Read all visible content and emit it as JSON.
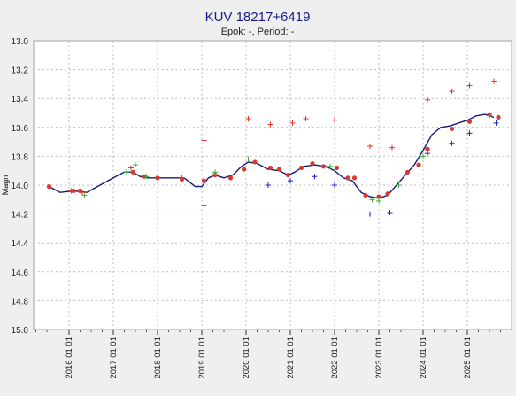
{
  "colors": {
    "background": "#efefef",
    "plot_background": "#ffffff",
    "frame": "#a0a0a0",
    "grid": "#bdbdbd",
    "title": "#1a1a8c",
    "fit_line": "#1a1a7a",
    "marker_red": "#e0302a",
    "marker_green": "#3caa3c",
    "marker_blue": "#2020c0",
    "mean_point": "#d83a2e"
  },
  "chart_data": {
    "type": "scatter",
    "title": "KUV 18217+6419",
    "subtitle": "Epok: -, Period: -",
    "xlabel": "",
    "ylabel": "Magn",
    "x_unit": "year",
    "xlim": [
      2015.2,
      2026.0
    ],
    "ylim": [
      13.0,
      15.0
    ],
    "y_inverted": true,
    "grid": true,
    "legend": "none",
    "x_major_ticks": [
      2016,
      2017,
      2018,
      2019,
      2020,
      2021,
      2022,
      2023,
      2024,
      2025
    ],
    "x_tick_labels": [
      "2016 01 01",
      "2017 01 01",
      "2018 01 01",
      "2019 01 01",
      "2020 01 01",
      "2021 01 01",
      "2022 01 01",
      "2023 01 01",
      "2024 01 01",
      "2025 01 01"
    ],
    "x_minor_step": 0.25,
    "y_ticks": [
      13.0,
      13.2,
      13.4,
      13.6,
      13.8,
      14.0,
      14.2,
      14.4,
      14.6,
      14.8,
      15.0
    ],
    "y_tick_labels": [
      "13.0",
      "13.2",
      "13.4",
      "13.6",
      "13.8",
      "14.0",
      "14.2",
      "14.4",
      "14.6",
      "14.8",
      "15.0"
    ],
    "series": [
      {
        "style": "line",
        "color": "fit_line",
        "x": [
          2015.55,
          2015.8,
          2016.1,
          2016.4,
          2016.7,
          2017.0,
          2017.25,
          2017.45,
          2017.6,
          2017.8,
          2018.0,
          2018.3,
          2018.6,
          2018.85,
          2019.0,
          2019.15,
          2019.3,
          2019.5,
          2019.7,
          2019.9,
          2020.05,
          2020.25,
          2020.5,
          2020.75,
          2020.95,
          2021.1,
          2021.3,
          2021.55,
          2021.8,
          2022.0,
          2022.2,
          2022.4,
          2022.6,
          2022.8,
          2023.0,
          2023.2,
          2023.4,
          2023.6,
          2023.8,
          2024.0,
          2024.2,
          2024.4,
          2024.6,
          2024.8,
          2025.0,
          2025.2,
          2025.4,
          2025.6
        ],
        "y": [
          14.01,
          14.05,
          14.04,
          14.05,
          14.0,
          13.95,
          13.91,
          13.91,
          13.94,
          13.95,
          13.95,
          13.95,
          13.95,
          14.01,
          14.01,
          13.95,
          13.93,
          13.95,
          13.93,
          13.87,
          13.84,
          13.85,
          13.89,
          13.9,
          13.93,
          13.91,
          13.87,
          13.86,
          13.87,
          13.9,
          13.95,
          13.97,
          14.05,
          14.08,
          14.09,
          14.07,
          14.0,
          13.93,
          13.86,
          13.76,
          13.65,
          13.6,
          13.59,
          13.57,
          13.55,
          13.52,
          13.51,
          13.53
        ]
      },
      {
        "style": "dot",
        "color": "mean_point",
        "x": [
          2015.55,
          2016.1,
          2016.25,
          2017.45,
          2017.7,
          2018.0,
          2018.55,
          2019.05,
          2019.3,
          2019.65,
          2019.95,
          2020.2,
          2020.55,
          2020.75,
          2020.95,
          2021.25,
          2021.5,
          2021.75,
          2022.05,
          2022.3,
          2022.45,
          2022.7,
          2023.0,
          2023.2,
          2023.65,
          2023.9,
          2024.1,
          2024.65,
          2025.05,
          2025.5,
          2025.7
        ],
        "y": [
          14.01,
          14.04,
          14.04,
          13.91,
          13.94,
          13.95,
          13.96,
          13.97,
          13.93,
          13.95,
          13.89,
          13.84,
          13.88,
          13.89,
          13.93,
          13.88,
          13.85,
          13.87,
          13.88,
          13.95,
          13.95,
          14.07,
          14.08,
          14.06,
          13.91,
          13.86,
          13.75,
          13.61,
          13.56,
          13.51,
          13.53
        ]
      },
      {
        "style": "plus",
        "color": "marker_red",
        "x": [
          2016.05,
          2016.3,
          2017.4,
          2017.65,
          2018.55,
          2019.05,
          2020.05,
          2020.55,
          2021.05,
          2021.35,
          2022.0,
          2022.8,
          2023.3,
          2024.1,
          2024.65,
          2025.05,
          2025.6
        ],
        "y": [
          14.04,
          14.05,
          13.88,
          13.93,
          13.95,
          13.69,
          13.54,
          13.58,
          13.57,
          13.54,
          13.55,
          13.73,
          13.74,
          13.41,
          13.35,
          13.31,
          13.28
        ]
      },
      {
        "style": "plus",
        "color": "marker_green",
        "x": [
          2016.35,
          2017.3,
          2017.5,
          2017.75,
          2019.3,
          2020.05,
          2021.9,
          2022.85,
          2023.0,
          2023.45,
          2024.0,
          2025.5
        ],
        "y": [
          14.07,
          13.91,
          13.86,
          13.94,
          13.91,
          13.82,
          13.87,
          14.1,
          14.11,
          14.0,
          13.8,
          13.52
        ]
      },
      {
        "style": "plus",
        "color": "marker_blue",
        "x": [
          2019.05,
          2020.5,
          2021.0,
          2021.55,
          2022.0,
          2022.8,
          2023.25,
          2024.1,
          2024.65,
          2025.05,
          2025.65
        ],
        "y": [
          14.14,
          14.0,
          13.97,
          13.94,
          14.0,
          14.2,
          14.19,
          13.78,
          13.71,
          13.64,
          13.57
        ]
      }
    ]
  }
}
